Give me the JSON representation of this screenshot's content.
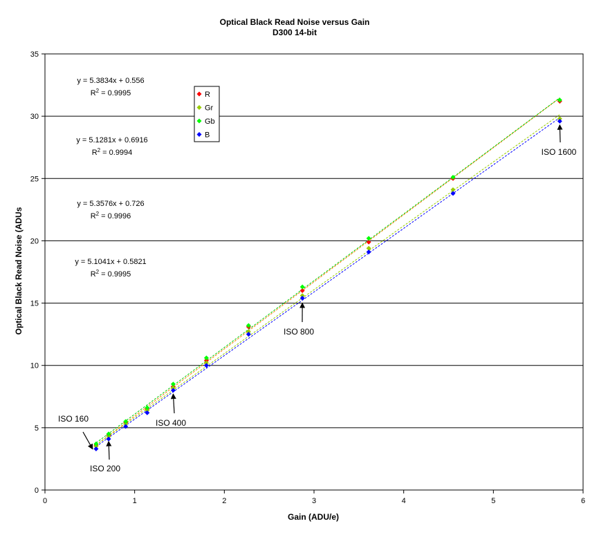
{
  "chart_data": {
    "type": "scatter",
    "title": "Optical Black Read Noise versus Gain",
    "subtitle": "D300 14-bit",
    "xlabel": "Gain (ADU/e)",
    "ylabel": "Optical Black Read Noise (ADUs",
    "xlim": [
      0,
      6
    ],
    "ylim": [
      0,
      35
    ],
    "xticks": [
      "0",
      "1",
      "2",
      "3",
      "4",
      "5",
      "6"
    ],
    "yticks": [
      "0",
      "5",
      "10",
      "15",
      "20",
      "25",
      "30",
      "35"
    ],
    "grid": "horizontal",
    "legend_position": "top-left",
    "x": [
      0.57,
      0.71,
      0.9,
      1.14,
      1.43,
      1.8,
      2.27,
      2.87,
      3.61,
      4.55,
      5.74
    ],
    "series": [
      {
        "name": "R",
        "color": "#ff0000",
        "trend_color": "#ff8000",
        "values": [
          3.6,
          4.4,
          5.4,
          6.5,
          8.3,
          10.4,
          13.1,
          16.0,
          19.9,
          25.0,
          31.2
        ],
        "trendline": {
          "slope": 5.3834,
          "intercept": 0.556
        }
      },
      {
        "name": "Gr",
        "color": "#99cc00",
        "trend_color": "#99cc00",
        "values": [
          3.5,
          4.3,
          5.3,
          6.4,
          8.2,
          10.2,
          12.7,
          15.6,
          19.4,
          24.1,
          29.8
        ],
        "trendline": {
          "slope": 5.1281,
          "intercept": 0.6916
        }
      },
      {
        "name": "Gb",
        "color": "#00ff00",
        "trend_color": "#00cc00",
        "values": [
          3.7,
          4.5,
          5.5,
          6.6,
          8.5,
          10.6,
          13.2,
          16.3,
          20.2,
          25.1,
          31.3
        ],
        "trendline": {
          "slope": 5.3576,
          "intercept": 0.726
        }
      },
      {
        "name": "B",
        "color": "#0000ff",
        "trend_color": "#0000ff",
        "values": [
          3.3,
          4.1,
          5.1,
          6.2,
          8.0,
          10.0,
          12.5,
          15.4,
          19.1,
          23.8,
          29.6
        ],
        "trendline": {
          "slope": 5.1041,
          "intercept": 0.5821
        }
      }
    ],
    "equations": [
      {
        "line": "y = 5.3834x + 0.556",
        "r2_prefix": "R",
        "r2_sup": "2",
        "r2_value": " = 0.9995"
      },
      {
        "line": "y = 5.1281x + 0.6916",
        "r2_prefix": "R",
        "r2_sup": "2",
        "r2_value": " = 0.9994"
      },
      {
        "line": "y = 5.3576x + 0.726",
        "r2_prefix": "R",
        "r2_sup": "2",
        "r2_value": " = 0.9996"
      },
      {
        "line": "y = 5.1041x + 0.5821",
        "r2_prefix": "R",
        "r2_sup": "2",
        "r2_value": " = 0.9995"
      }
    ],
    "annotations": [
      {
        "text": "ISO 160",
        "x": 0.57,
        "y": 3.4
      },
      {
        "text": "ISO 200",
        "x": 0.71,
        "y": 3.9
      },
      {
        "text": "ISO 400",
        "x": 1.43,
        "y": 7.7
      },
      {
        "text": "ISO 800",
        "x": 2.87,
        "y": 15.0
      },
      {
        "text": "ISO 1600",
        "x": 5.74,
        "y": 29.3
      }
    ]
  }
}
